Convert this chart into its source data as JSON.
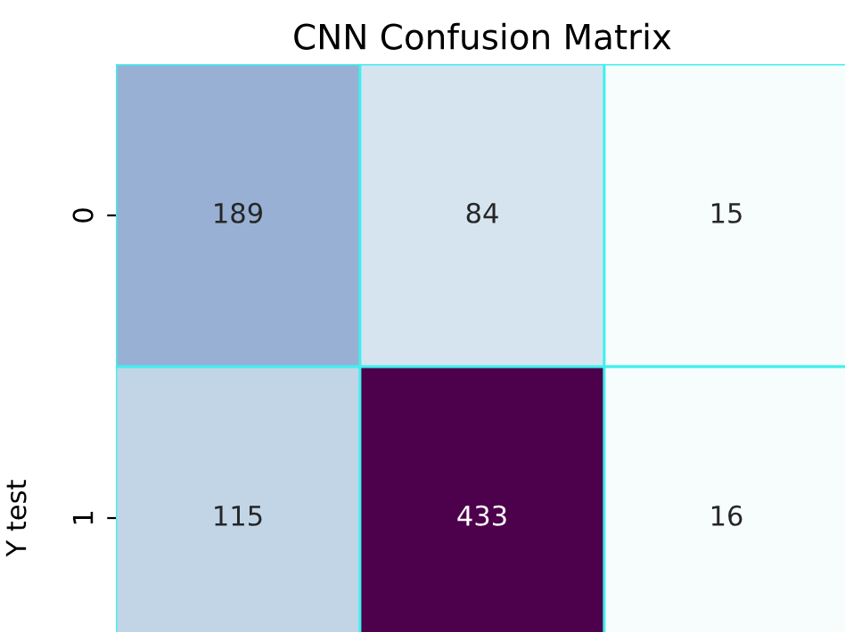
{
  "chart_data": {
    "type": "heatmap",
    "title": "CNN Confusion Matrix",
    "ylabel": "Y test",
    "categories": [
      null,
      null,
      null
    ],
    "y_categories": [
      "0",
      "1"
    ],
    "cells": [
      [
        189,
        84,
        15
      ],
      [
        115,
        433,
        16
      ]
    ],
    "data_labels": true,
    "tick_labels": "y"
  }
}
